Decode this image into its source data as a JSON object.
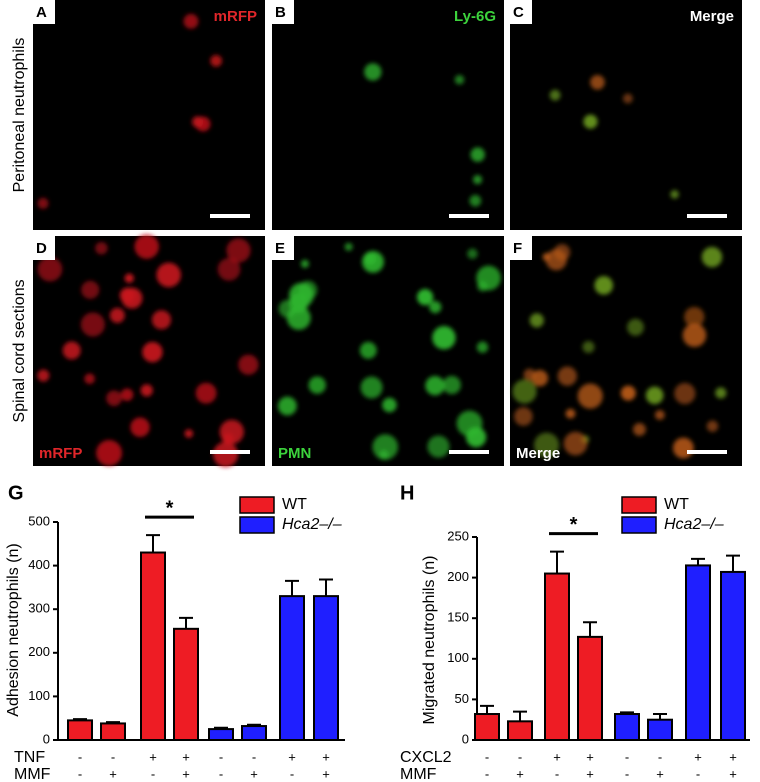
{
  "panels": [
    {
      "letter": "A",
      "label": "mRFP"
    },
    {
      "letter": "B",
      "label": "Ly-6G"
    },
    {
      "letter": "C",
      "label": "Merge"
    },
    {
      "letter": "D",
      "label": "mRFP"
    },
    {
      "letter": "E",
      "label": "PMN"
    },
    {
      "letter": "F",
      "label": "Merge"
    }
  ],
  "row_labels": [
    "Peritoneal neutrophils",
    "Spinal cord sections"
  ],
  "chart_data": [
    {
      "type": "bar",
      "panel": "G",
      "y_label": "Adhesion neutrophils (n)",
      "ylim": [
        0,
        500
      ],
      "yticks": [
        0,
        100,
        200,
        300,
        400,
        500
      ],
      "series": [
        {
          "name": "WT",
          "color": "#ee1c24",
          "values": [
            45,
            38,
            430,
            255,
            null,
            null,
            null,
            null
          ],
          "errors": [
            3,
            3,
            40,
            25,
            null,
            null,
            null,
            null
          ]
        },
        {
          "name": "Hca2–/–",
          "color": "#1f1fff",
          "values": [
            null,
            null,
            null,
            null,
            25,
            32,
            330,
            330
          ],
          "errors": [
            null,
            null,
            null,
            null,
            3,
            3,
            35,
            38
          ]
        }
      ],
      "conditions": [
        {
          "name": "TNF",
          "values": [
            "-",
            "-",
            "+",
            "+",
            "-",
            "-",
            "+",
            "+"
          ]
        },
        {
          "name": "MMF",
          "values": [
            "-",
            "+",
            "-",
            "+",
            "-",
            "+",
            "-",
            "+"
          ]
        }
      ],
      "significance": "*"
    },
    {
      "type": "bar",
      "panel": "H",
      "y_label": "Migrated neutrophils (n)",
      "ylim": [
        0,
        250
      ],
      "yticks": [
        0,
        50,
        100,
        150,
        200,
        250
      ],
      "series": [
        {
          "name": "WT",
          "color": "#ee1c24",
          "values": [
            32,
            23,
            205,
            127,
            null,
            null,
            null,
            null
          ],
          "errors": [
            10,
            12,
            27,
            18,
            null,
            null,
            null,
            null
          ]
        },
        {
          "name": "Hca2–/–",
          "color": "#1f1fff",
          "values": [
            null,
            null,
            null,
            null,
            32,
            25,
            215,
            207
          ],
          "errors": [
            null,
            null,
            null,
            null,
            2,
            7,
            8,
            20
          ]
        }
      ],
      "conditions": [
        {
          "name": "CXCL2",
          "values": [
            "-",
            "-",
            "+",
            "+",
            "-",
            "-",
            "+",
            "+"
          ]
        },
        {
          "name": "MMF",
          "values": [
            "-",
            "+",
            "-",
            "+",
            "-",
            "+",
            "-",
            "+"
          ]
        }
      ],
      "significance": "*"
    }
  ]
}
